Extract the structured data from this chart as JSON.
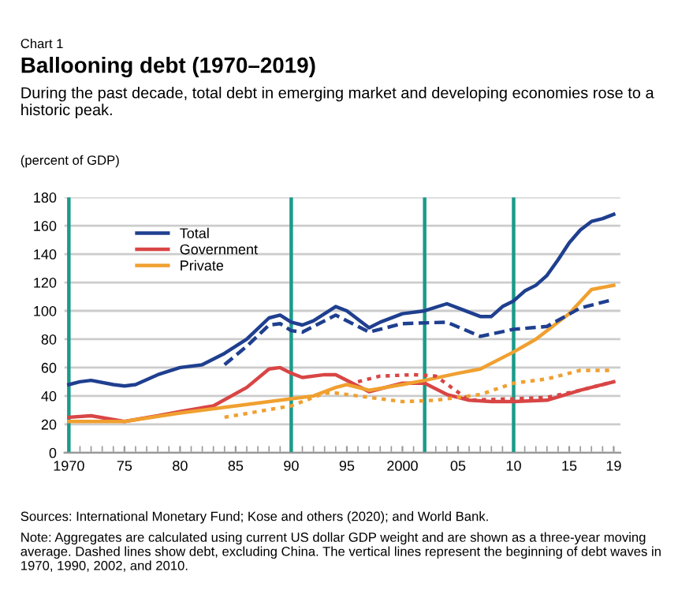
{
  "chart_data": {
    "type": "line",
    "title": "Ballooning debt (1970–2019)",
    "subtitle": "During the past decade, total debt in emerging market and developing economies rose to a historic peak.",
    "ylabel": "(percent of GDP)",
    "annotations": [
      "Chart 1",
      "Sources: International Monetary Fund; Kose and others (2020); and World Bank.",
      "Note: Aggregates are calculated using current US dollar GDP weight and are shown as a three-year moving average. Dashed lines show debt, excluding China. The vertical lines represent the beginning of debt waves in 1970, 1990, 2002, and 2010."
    ],
    "xlim": [
      1969.6,
      2019.6
    ],
    "xticks": [
      1970,
      {
        "value": 1975,
        "label": "75"
      },
      {
        "value": 1980,
        "label": "80"
      },
      {
        "value": 1985,
        "label": "85"
      },
      {
        "value": 1990,
        "label": "90"
      },
      {
        "value": 1995,
        "label": "95"
      },
      2000,
      {
        "value": 2005,
        "label": "05"
      },
      {
        "value": 2010,
        "label": "10"
      },
      {
        "value": 2015,
        "label": "15"
      },
      {
        "value": 2019,
        "label": "19"
      }
    ],
    "ylim": [
      0,
      180
    ],
    "yticks": [
      0,
      20,
      40,
      60,
      80,
      100,
      120,
      140,
      160,
      180
    ],
    "grid": "y",
    "legend": "top left",
    "ref_lines": [
      {
        "axis": "x",
        "value": 1970,
        "color": "#1a9a8a"
      },
      {
        "axis": "x",
        "value": 1990,
        "color": "#1a9a8a"
      },
      {
        "axis": "x",
        "value": 2002,
        "color": "#1a9a8a"
      },
      {
        "axis": "x",
        "value": 2010,
        "color": "#1a9a8a"
      }
    ],
    "series": [
      {
        "name": "Total",
        "color": "#1f3f8f",
        "line_style": "solid",
        "x": [
          1970,
          1971,
          1972,
          1974,
          1975,
          1976,
          1978,
          1980,
          1982,
          1984,
          1986,
          1988,
          1989,
          1990,
          1991,
          1992,
          1994,
          1995,
          1997,
          1998,
          2000,
          2002,
          2004,
          2005,
          2007,
          2008,
          2009,
          2010,
          2011,
          2012,
          2013,
          2014,
          2015,
          2016,
          2017,
          2018,
          2019
        ],
        "values": [
          48,
          50,
          51,
          48,
          47,
          48,
          55,
          60,
          62,
          70,
          80,
          95,
          97,
          92,
          90,
          93,
          103,
          100,
          88,
          92,
          98,
          100,
          105,
          102,
          96,
          96,
          103,
          107,
          114,
          118,
          125,
          136,
          148,
          157,
          163,
          165,
          168
        ]
      },
      {
        "name": "Government",
        "color": "#d94545",
        "line_style": "solid",
        "x": [
          1970,
          1972,
          1975,
          1978,
          1980,
          1983,
          1986,
          1988,
          1989,
          1990,
          1991,
          1993,
          1994,
          1997,
          2000,
          2002,
          2004,
          2006,
          2008,
          2010,
          2013,
          2016,
          2019
        ],
        "values": [
          25,
          26,
          22,
          26,
          29,
          33,
          46,
          59,
          60,
          56,
          53,
          55,
          55,
          43,
          49,
          49,
          41,
          37,
          36,
          36,
          37,
          44,
          50
        ]
      },
      {
        "name": "Private",
        "color": "#f0a030",
        "line_style": "solid",
        "x": [
          1970,
          1975,
          1980,
          1985,
          1990,
          1992,
          1994,
          1995,
          1997,
          2000,
          2002,
          2005,
          2007,
          2010,
          2012,
          2015,
          2017,
          2019
        ],
        "values": [
          22,
          22,
          28,
          33,
          38,
          40,
          46,
          48,
          44,
          48,
          51,
          56,
          59,
          71,
          80,
          98,
          115,
          118
        ]
      },
      {
        "color": "#1f3f8f",
        "line_style": "dashed",
        "x": [
          1984,
          1986,
          1988,
          1989,
          1990,
          1991,
          1994,
          1997,
          2000,
          2004,
          2007,
          2010,
          2013,
          2016,
          2019
        ],
        "values": [
          62,
          75,
          90,
          91,
          86,
          85,
          97,
          85,
          91,
          92,
          82,
          87,
          89,
          102,
          108
        ]
      },
      {
        "color": "#d94545",
        "line_style": "dotted",
        "x": [
          1996,
          1998,
          2001,
          2003,
          2006,
          2010,
          2013,
          2016,
          2019
        ],
        "values": [
          50,
          54,
          55,
          54,
          37,
          38,
          39,
          44,
          50
        ]
      },
      {
        "color": "#f0a030",
        "line_style": "dotted",
        "x": [
          1984,
          1987,
          1990,
          1993,
          1994,
          1997,
          2000,
          2003,
          2007,
          2010,
          2013,
          2016,
          2019
        ],
        "values": [
          25,
          29,
          33,
          42,
          42,
          39,
          36,
          37,
          41,
          49,
          52,
          58,
          58
        ]
      }
    ]
  }
}
